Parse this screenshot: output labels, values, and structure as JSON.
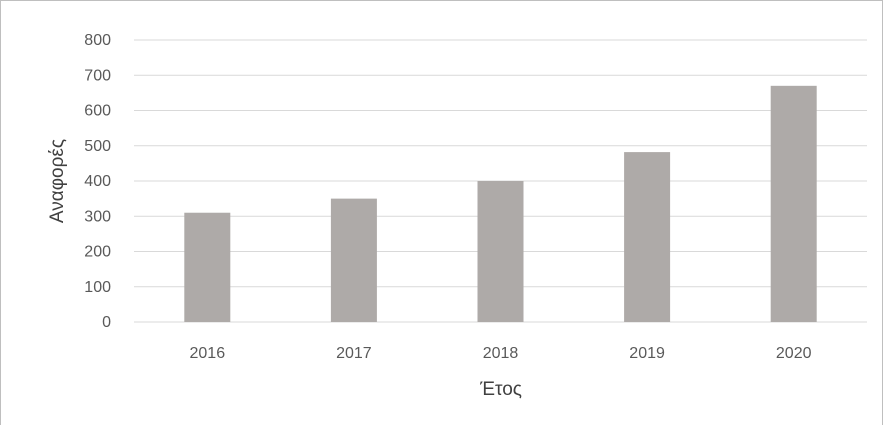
{
  "chart_data": {
    "type": "bar",
    "categories": [
      "2016",
      "2017",
      "2018",
      "2019",
      "2020"
    ],
    "values": [
      310,
      350,
      400,
      482,
      670
    ],
    "title": "",
    "xlabel": "Έτος",
    "ylabel": "Αναφορές",
    "ylim": [
      0,
      800
    ],
    "yticks": [
      "0",
      "100",
      "200",
      "300",
      "400",
      "500",
      "600",
      "700",
      "800"
    ],
    "grid": true,
    "legend": "none",
    "bar_color": "#aeaaa8"
  }
}
